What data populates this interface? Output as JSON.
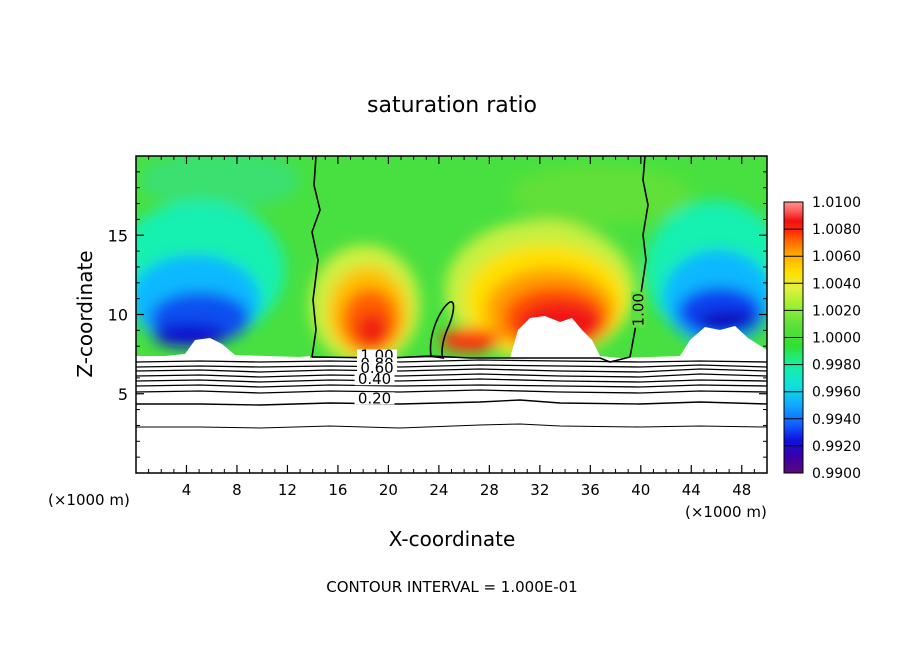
{
  "chart_data": {
    "type": "heatmap",
    "title": "saturation ratio",
    "xlabel": "X-coordinate",
    "ylabel": "Z-coordinate",
    "x_unit": "(×1000 m)",
    "x_ticks": [
      4,
      8,
      12,
      16,
      20,
      24,
      28,
      32,
      36,
      40,
      44,
      48
    ],
    "y_ticks": [
      5,
      10,
      15
    ],
    "xlim": [
      0,
      50
    ],
    "ylim": [
      0,
      20
    ],
    "colorbar": {
      "min": 0.99,
      "max": 1.01,
      "tick_labels": [
        "1.0100",
        "1.0080",
        "1.0060",
        "1.0040",
        "1.0020",
        "1.0000",
        "0.9980",
        "0.9960",
        "0.9940",
        "0.9920",
        "0.9900"
      ],
      "colors": [
        "#5a0a78",
        "#3a00a8",
        "#1010e0",
        "#1060ff",
        "#10a8ff",
        "#10e0e0",
        "#18f0a0",
        "#30e030",
        "#60e040",
        "#a0f030",
        "#e0f040",
        "#ffe000",
        "#ffb000",
        "#ff7000",
        "#ff3000",
        "#f01010",
        "#ff6060",
        "#ff9090"
      ]
    },
    "contour_labels": [
      {
        "text": "1.00",
        "x": 39.8,
        "y": 10.3
      },
      {
        "text": "1.00",
        "x": 19.1,
        "y": 7.1
      },
      {
        "text": "0.80",
        "x": 19.1,
        "y": 6.6
      },
      {
        "text": "0.60",
        "x": 19.1,
        "y": 6.3
      },
      {
        "text": "0.40",
        "x": 18.9,
        "y": 5.6
      },
      {
        "text": "0.20",
        "x": 18.9,
        "y": 4.4
      }
    ],
    "footnote": "CONTOUR INTERVAL = 1.000E-01"
  }
}
